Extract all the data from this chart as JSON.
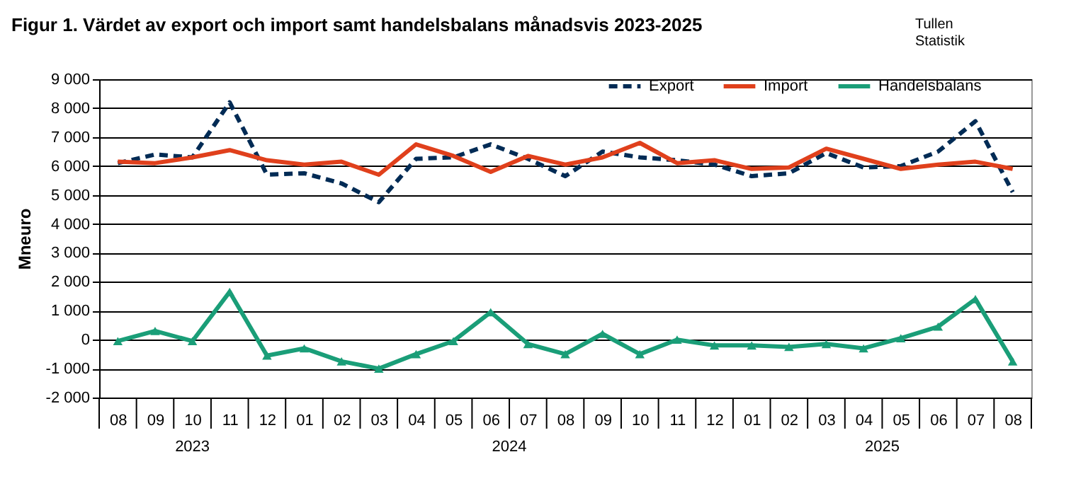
{
  "chart_data": {
    "type": "line",
    "title": "Figur 1. Värdet av export och import samt handelsbalans månadsvis 2023-2025",
    "ylabel": "Mneuro",
    "annotations": [
      "2023",
      "2024",
      "2025",
      "Tullen",
      "Statistik"
    ],
    "categories": [
      "08",
      "09",
      "10",
      "11",
      "12",
      "01",
      "02",
      "03",
      "04",
      "05",
      "06",
      "07",
      "08",
      "09",
      "10",
      "11",
      "12",
      "01",
      "02",
      "03",
      "04",
      "05",
      "06",
      "07",
      "08"
    ],
    "ylim": [
      -2000,
      9000
    ],
    "yticks": [
      {
        "value": -2000,
        "label": "-2 000"
      },
      {
        "value": -1000,
        "label": "-1 000"
      },
      0,
      {
        "value": 1000,
        "label": "1 000"
      },
      {
        "value": 2000,
        "label": "2 000"
      },
      {
        "value": 3000,
        "label": "3 000"
      },
      {
        "value": 4000,
        "label": "4 000"
      },
      {
        "value": 5000,
        "label": "5 000"
      },
      {
        "value": 6000,
        "label": "6 000"
      },
      {
        "value": 7000,
        "label": "7 000"
      },
      {
        "value": 8000,
        "label": "8 000"
      },
      {
        "value": 9000,
        "label": "9 000"
      }
    ],
    "grid": "y",
    "legend": "top right",
    "series": [
      {
        "name": "Export",
        "color": "#002b55",
        "line_style": "dashed",
        "values": [
          6100,
          6400,
          6300,
          8200,
          5700,
          5750,
          5400,
          4750,
          6250,
          6300,
          6750,
          6250,
          5650,
          6500,
          6300,
          6200,
          6050,
          5650,
          5750,
          6450,
          5950,
          6000,
          6500,
          7550,
          5100
        ]
      },
      {
        "name": "Import",
        "color": "#e0401c",
        "line_style": "solid",
        "values": [
          6150,
          6100,
          6300,
          6550,
          6200,
          6050,
          6150,
          5700,
          6750,
          6350,
          5800,
          6350,
          6050,
          6300,
          6800,
          6100,
          6200,
          5900,
          5950,
          6600,
          6250,
          5900,
          6050,
          6150,
          5900
        ]
      },
      {
        "name": "Handelsbalans",
        "color": "#1a9e78",
        "line_style": "solid",
        "marker": "triangle",
        "values": [
          -50,
          300,
          -50,
          1650,
          -550,
          -300,
          -750,
          -1000,
          -500,
          -50,
          950,
          -150,
          -500,
          200,
          -500,
          0,
          -200,
          -200,
          -250,
          -150,
          -300,
          50,
          450,
          1400,
          -750
        ]
      }
    ]
  }
}
